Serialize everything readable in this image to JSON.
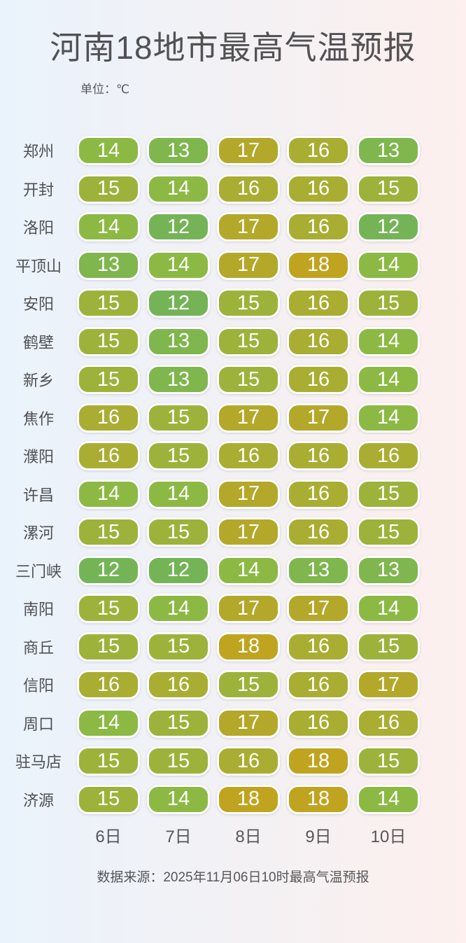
{
  "page": {
    "title": "河南18地市最高气温预报",
    "unit_label": "单位：℃",
    "source_note": "数据来源：2025年11月06日10时最高气温预报"
  },
  "colors": {
    "bg_left": "#eaf3fc",
    "bg_right": "#fdf0ee",
    "title_text": "#525255",
    "pill_text": "#ffffff",
    "temp_scale": {
      "12": "#74b457",
      "13": "#7fb64e",
      "14": "#8cb944",
      "15": "#9db23a",
      "16": "#a9ad32",
      "17": "#b3a829",
      "18": "#c0a41f"
    }
  },
  "chart_data": {
    "type": "heatmap",
    "title": "河南18地市最高气温预报",
    "unit": "℃",
    "columns": [
      "6日",
      "7日",
      "8日",
      "9日",
      "10日"
    ],
    "rows": [
      {
        "city": "郑州",
        "values": [
          14,
          13,
          17,
          16,
          13
        ]
      },
      {
        "city": "开封",
        "values": [
          15,
          14,
          16,
          16,
          15
        ]
      },
      {
        "city": "洛阳",
        "values": [
          14,
          12,
          17,
          16,
          12
        ]
      },
      {
        "city": "平顶山",
        "values": [
          13,
          14,
          17,
          18,
          14
        ]
      },
      {
        "city": "安阳",
        "values": [
          15,
          12,
          15,
          16,
          15
        ]
      },
      {
        "city": "鹤壁",
        "values": [
          15,
          13,
          15,
          16,
          14
        ]
      },
      {
        "city": "新乡",
        "values": [
          15,
          13,
          15,
          16,
          14
        ]
      },
      {
        "city": "焦作",
        "values": [
          16,
          15,
          17,
          17,
          14
        ]
      },
      {
        "city": "濮阳",
        "values": [
          16,
          15,
          16,
          16,
          16
        ]
      },
      {
        "city": "许昌",
        "values": [
          14,
          14,
          17,
          16,
          15
        ]
      },
      {
        "city": "漯河",
        "values": [
          15,
          15,
          17,
          16,
          15
        ]
      },
      {
        "city": "三门峡",
        "values": [
          12,
          12,
          14,
          13,
          13
        ]
      },
      {
        "city": "南阳",
        "values": [
          15,
          14,
          17,
          17,
          14
        ]
      },
      {
        "city": "商丘",
        "values": [
          15,
          15,
          18,
          16,
          15
        ]
      },
      {
        "city": "信阳",
        "values": [
          16,
          16,
          15,
          16,
          17
        ]
      },
      {
        "city": "周口",
        "values": [
          14,
          15,
          17,
          16,
          16
        ]
      },
      {
        "city": "驻马店",
        "values": [
          15,
          15,
          16,
          18,
          15
        ]
      },
      {
        "city": "济源",
        "values": [
          15,
          14,
          18,
          18,
          14
        ]
      }
    ],
    "value_range": [
      12,
      18
    ],
    "legend": "none",
    "source": "数据来源：2025年11月06日10时最高气温预报"
  }
}
